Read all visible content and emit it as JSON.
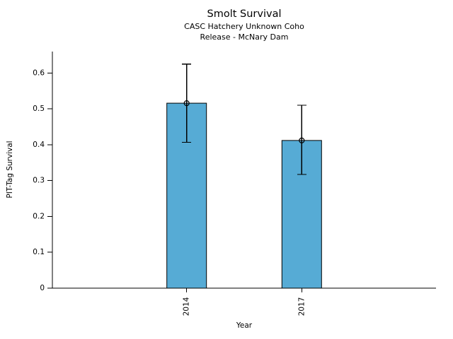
{
  "chart_data": {
    "type": "bar",
    "title": "Smolt Survival",
    "subtitle": [
      "CASC Hatchery Unknown Coho",
      "Release - McNary Dam"
    ],
    "categories": [
      "2014",
      "2017"
    ],
    "values": [
      0.516,
      0.412
    ],
    "error_upper": [
      0.625,
      0.51
    ],
    "error_lower": [
      0.407,
      0.317
    ],
    "xlabel": "Year",
    "ylabel": "PIT-Tag Survival",
    "ytick_labels": [
      "0",
      "0.1",
      "0.2",
      "0.3",
      "0.4",
      "0.5",
      "0.6"
    ],
    "yticks": [
      0,
      0.1,
      0.2,
      0.3,
      0.4,
      0.5,
      0.6
    ],
    "ylim": [
      0,
      0.66
    ],
    "x_tick_rotation": 90,
    "grid": false,
    "legend": "none",
    "colors": {
      "bar_fill": "#56abd5",
      "bar_edge": "#000000",
      "error_bar": "#000000",
      "marker_stroke": "#000000",
      "axis": "#000000",
      "text": "#000000",
      "background": "#ffffff"
    },
    "marker": "open-circle"
  }
}
